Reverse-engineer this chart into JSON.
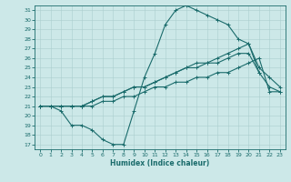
{
  "xlabel": "Humidex (Indice chaleur)",
  "background_color": "#cce8e8",
  "grid_color": "#aacece",
  "line_color": "#1a6b6b",
  "xlim": [
    -0.5,
    23.5
  ],
  "ylim": [
    16.5,
    31.5
  ],
  "xticks": [
    0,
    1,
    2,
    3,
    4,
    5,
    6,
    7,
    8,
    9,
    10,
    11,
    12,
    13,
    14,
    15,
    16,
    17,
    18,
    19,
    20,
    21,
    22,
    23
  ],
  "yticks": [
    17,
    18,
    19,
    20,
    21,
    22,
    23,
    24,
    25,
    26,
    27,
    28,
    29,
    30,
    31
  ],
  "curve1_x": [
    0,
    1,
    2,
    3,
    4,
    5,
    6,
    7,
    8,
    9,
    10,
    11,
    12,
    13,
    14,
    15,
    16,
    17,
    18,
    19,
    20,
    21
  ],
  "curve1_y": [
    21,
    21,
    20.5,
    19,
    19,
    18.5,
    17.5,
    17,
    17,
    20.5,
    24,
    26.5,
    29.5,
    31,
    31.5,
    31,
    30.5,
    30,
    29.5,
    28,
    27.5,
    24.5
  ],
  "curve2_x": [
    0,
    1,
    2,
    3,
    4,
    5,
    6,
    7,
    8,
    9,
    10,
    11,
    12,
    13,
    14,
    15,
    16,
    17,
    18,
    19,
    20,
    21,
    22,
    23
  ],
  "curve2_y": [
    21,
    21,
    21,
    21,
    21,
    21,
    21.5,
    21.5,
    22,
    22,
    22.5,
    23,
    23,
    23.5,
    23.5,
    24,
    24,
    24.5,
    24.5,
    25,
    25.5,
    26,
    22.5,
    22.5
  ],
  "curve3_x": [
    0,
    1,
    2,
    3,
    4,
    5,
    6,
    7,
    8,
    9,
    10,
    11,
    12,
    13,
    14,
    15,
    16,
    17,
    18,
    19,
    20,
    21,
    22,
    23
  ],
  "curve3_y": [
    21,
    21,
    21,
    21,
    21,
    21.5,
    22,
    22,
    22.5,
    23,
    23,
    23.5,
    24,
    24.5,
    25,
    25,
    25.5,
    25.5,
    26,
    26.5,
    26.5,
    24.5,
    23,
    22.5
  ],
  "curve4_x": [
    0,
    1,
    2,
    3,
    4,
    5,
    6,
    7,
    8,
    9,
    10,
    11,
    12,
    13,
    14,
    15,
    16,
    17,
    18,
    19,
    20,
    21,
    22,
    23
  ],
  "curve4_y": [
    21,
    21,
    21,
    21,
    21,
    21.5,
    22,
    22,
    22.5,
    23,
    23,
    23.5,
    24,
    24.5,
    25,
    25.5,
    25.5,
    26,
    26.5,
    27,
    27.5,
    25,
    24,
    23
  ]
}
